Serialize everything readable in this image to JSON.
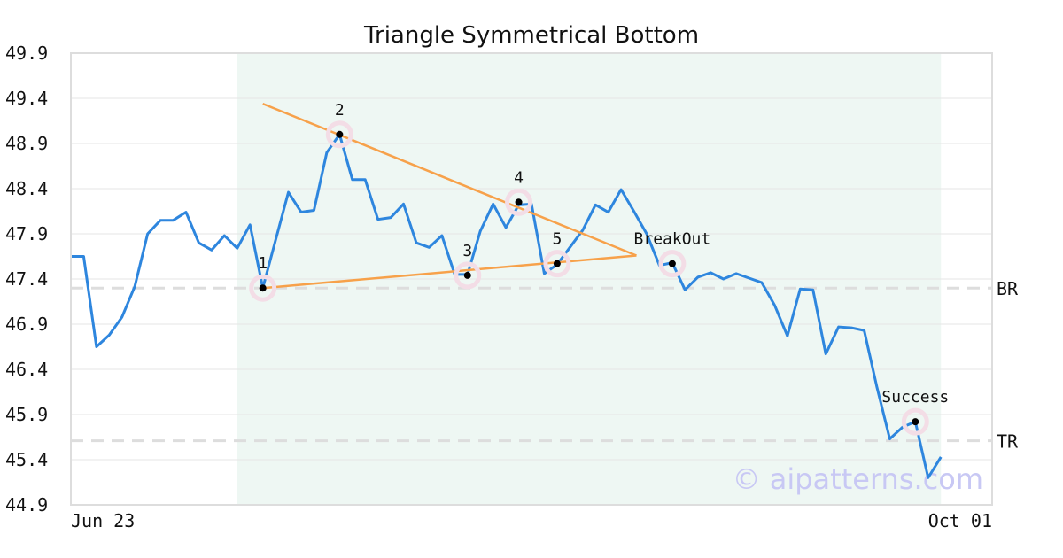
{
  "chart_data": {
    "type": "line",
    "title": "Triangle Symmetrical Bottom",
    "xlabel": "",
    "ylabel": "",
    "ylim": [
      44.9,
      49.9
    ],
    "yticks": [
      "49.9",
      "49.4",
      "48.9",
      "48.4",
      "47.9",
      "47.4",
      "46.9",
      "46.4",
      "45.9",
      "45.4",
      "44.9"
    ],
    "xticks": [
      "Jun 23",
      "Oct 01"
    ],
    "x_range": [
      0,
      72
    ],
    "grid": true,
    "highlight_range": [
      13,
      68
    ],
    "colors": {
      "line": "#2e86de",
      "trend": "#f7a14a",
      "highlight": "#eef7f3",
      "ref": "#dddddd",
      "marker_ring": "#f3dde6"
    },
    "series": [
      {
        "values": [
          47.65,
          47.65,
          46.65,
          46.78,
          46.98,
          47.32,
          47.9,
          48.05,
          48.05,
          48.14,
          47.8,
          47.72,
          47.88,
          47.74,
          48.0,
          47.3,
          47.83,
          48.36,
          48.14,
          48.16,
          48.8,
          49.0,
          48.5,
          48.5,
          48.06,
          48.08,
          48.23,
          47.8,
          47.75,
          47.88,
          47.45,
          47.45,
          47.93,
          48.23,
          47.97,
          48.22,
          48.23,
          47.46,
          47.56,
          47.75,
          47.94,
          48.22,
          48.14,
          48.39,
          48.15,
          47.9,
          47.55,
          47.58,
          47.28,
          47.42,
          47.47,
          47.4,
          47.46,
          47.41,
          47.36,
          47.11,
          46.77,
          47.29,
          47.28,
          46.57,
          46.87,
          46.86,
          46.83,
          46.2,
          45.63,
          45.76,
          45.82,
          45.2,
          45.43
        ]
      }
    ],
    "trendlines": [
      {
        "name": "upper",
        "x": [
          15,
          44.2
        ],
        "y": [
          49.34,
          47.66
        ]
      },
      {
        "name": "lower",
        "x": [
          15,
          44.2
        ],
        "y": [
          47.3,
          47.66
        ]
      }
    ],
    "points": [
      {
        "label": "1",
        "x": 15,
        "y": 47.3
      },
      {
        "label": "2",
        "x": 21,
        "y": 49.0
      },
      {
        "label": "3",
        "x": 31,
        "y": 47.44
      },
      {
        "label": "4",
        "x": 35,
        "y": 48.25
      },
      {
        "label": "5",
        "x": 38,
        "y": 47.57
      },
      {
        "label": "BreakOut",
        "x": 47,
        "y": 47.57
      },
      {
        "label": "Success",
        "x": 66,
        "y": 45.82
      }
    ],
    "reference_lines": [
      {
        "label": "BR",
        "y": 47.3
      },
      {
        "label": "TR",
        "y": 45.61
      }
    ],
    "watermark": "© aipatterns.com"
  }
}
